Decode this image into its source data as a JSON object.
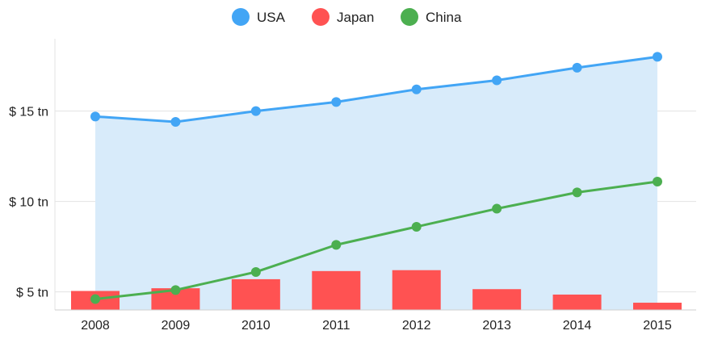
{
  "chart_data": {
    "type": "bar",
    "title": "",
    "xlabel": "",
    "ylabel": "",
    "categories": [
      "2008",
      "2009",
      "2010",
      "2011",
      "2012",
      "2013",
      "2014",
      "2015"
    ],
    "y_ticks": [
      {
        "value": 5,
        "label": "$ 5 tn"
      },
      {
        "value": 10,
        "label": "$ 10 tn"
      },
      {
        "value": 15,
        "label": "$ 15 tn"
      }
    ],
    "ylim": [
      4.0,
      19.0
    ],
    "grid": true,
    "legend_position": "top-center",
    "series": [
      {
        "name": "USA",
        "render": "area-line",
        "color": "#42a5f5",
        "fill": "#d8ebfa",
        "values": [
          14.7,
          14.4,
          15.0,
          15.5,
          16.2,
          16.7,
          17.4,
          18.0
        ]
      },
      {
        "name": "Japan",
        "render": "bar",
        "color": "#ff5252",
        "values": [
          5.05,
          5.2,
          5.7,
          6.15,
          6.2,
          5.15,
          4.85,
          4.4
        ]
      },
      {
        "name": "China",
        "render": "line",
        "color": "#4caf50",
        "values": [
          4.6,
          5.1,
          6.1,
          7.6,
          8.6,
          9.6,
          10.5,
          11.1
        ]
      }
    ]
  }
}
